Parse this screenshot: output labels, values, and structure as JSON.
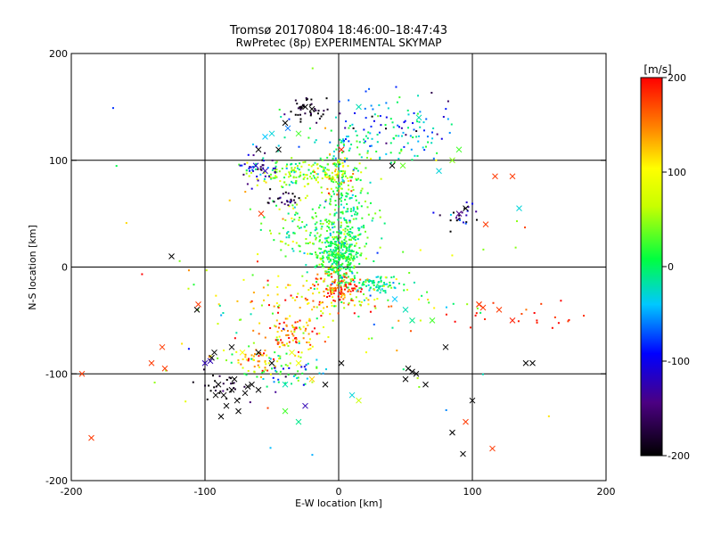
{
  "title_line1": "Tromsø 20170804 18:46:00–18:47:43",
  "title_line2": "RwPretec (8p) EXPERIMENTAL SKYMAP",
  "colorbar": {
    "unit_label": "[m/s]",
    "ticks": [
      200,
      100,
      0,
      -100,
      -200
    ],
    "range": [
      -200,
      200
    ],
    "colors": [
      "#000000",
      "#4b0082",
      "#0000ff",
      "#00c0ff",
      "#00ff00",
      "#ffff00",
      "#ff8c00",
      "#ff0000"
    ]
  },
  "chart_data": {
    "type": "scatter",
    "xlabel": "E-W location [km]",
    "ylabel": "N-S location [km]",
    "xlim": [
      -200,
      200
    ],
    "ylim": [
      -200,
      200
    ],
    "xticks": [
      -200,
      -100,
      0,
      100,
      200
    ],
    "yticks": [
      -200,
      -100,
      0,
      100,
      200
    ],
    "grid": true,
    "gridlines_x": [
      -100,
      0,
      100
    ],
    "gridlines_y": [
      -100,
      0,
      100
    ],
    "clusters": [
      {
        "x": 0,
        "y": 10,
        "sx": 8,
        "sy": 12,
        "n": 320,
        "v": 5,
        "vs": 25
      },
      {
        "x": 25,
        "y": -15,
        "sx": 10,
        "sy": 4,
        "n": 70,
        "v": -20,
        "vs": 20
      },
      {
        "x": 0,
        "y": -20,
        "sx": 10,
        "sy": 8,
        "n": 110,
        "v": 170,
        "vs": 40
      },
      {
        "x": -30,
        "y": 88,
        "sx": 20,
        "sy": 6,
        "n": 150,
        "v": 30,
        "vs": 40
      },
      {
        "x": 0,
        "y": 85,
        "sx": 6,
        "sy": 10,
        "n": 60,
        "v": 80,
        "vs": 50
      },
      {
        "x": 5,
        "y": 45,
        "sx": 10,
        "sy": 25,
        "n": 220,
        "v": 0,
        "vs": 30
      },
      {
        "x": -30,
        "y": 35,
        "sx": 12,
        "sy": 15,
        "n": 90,
        "v": 20,
        "vs": 40
      },
      {
        "x": -25,
        "y": 148,
        "sx": 8,
        "sy": 5,
        "n": 40,
        "v": -200,
        "vs": 20
      },
      {
        "x": 45,
        "y": 135,
        "sx": 25,
        "sy": 15,
        "n": 80,
        "v": -70,
        "vs": 50
      },
      {
        "x": 20,
        "y": 115,
        "sx": 30,
        "sy": 12,
        "n": 90,
        "v": -20,
        "vs": 40
      },
      {
        "x": -60,
        "y": 95,
        "sx": 8,
        "sy": 8,
        "n": 40,
        "v": -120,
        "vs": 40
      },
      {
        "x": -40,
        "y": 62,
        "sx": 8,
        "sy": 5,
        "n": 25,
        "v": -180,
        "vs": 30
      },
      {
        "x": 90,
        "y": 50,
        "sx": 8,
        "sy": 6,
        "n": 25,
        "v": -150,
        "vs": 40
      },
      {
        "x": -35,
        "y": -65,
        "sx": 10,
        "sy": 8,
        "n": 90,
        "v": 150,
        "vs": 60
      },
      {
        "x": -60,
        "y": -88,
        "sx": 12,
        "sy": 6,
        "n": 70,
        "v": 80,
        "vs": 80
      },
      {
        "x": -35,
        "y": -100,
        "sx": 15,
        "sy": 8,
        "n": 50,
        "v": -40,
        "vs": 60
      },
      {
        "x": -90,
        "y": -110,
        "sx": 10,
        "sy": 8,
        "n": 30,
        "v": -200,
        "vs": 20
      },
      {
        "x": -15,
        "y": -30,
        "sx": 25,
        "sy": 12,
        "n": 90,
        "v": 110,
        "vs": 60
      },
      {
        "x": 50,
        "y": -30,
        "sx": 25,
        "sy": 15,
        "n": 30,
        "v": 60,
        "vs": 80
      },
      {
        "x": 130,
        "y": -45,
        "sx": 25,
        "sy": 8,
        "n": 20,
        "v": 190,
        "vs": 10
      },
      {
        "x": -90,
        "y": -40,
        "sx": 20,
        "sy": 15,
        "n": 20,
        "v": 80,
        "vs": 80
      },
      {
        "x": 0,
        "y": 0,
        "sx": 90,
        "sy": 90,
        "n": 60,
        "v": 40,
        "vs": 100
      }
    ],
    "crosses": [
      [
        -192,
        -100,
        180
      ],
      [
        -185,
        -160,
        180
      ],
      [
        -132,
        -75,
        180
      ],
      [
        -125,
        10,
        -200
      ],
      [
        -105,
        -35,
        180
      ],
      [
        -106,
        -40,
        -200
      ],
      [
        -96,
        -88,
        -130
      ],
      [
        -93,
        -80,
        -200
      ],
      [
        -92,
        -120,
        -200
      ],
      [
        -90,
        -110,
        -200
      ],
      [
        -86,
        -120,
        -200
      ],
      [
        -84,
        -130,
        -200
      ],
      [
        -80,
        -115,
        -200
      ],
      [
        -78,
        -105,
        -200
      ],
      [
        -76,
        -125,
        -200
      ],
      [
        -70,
        -118,
        -200
      ],
      [
        -68,
        -112,
        -200
      ],
      [
        -65,
        -110,
        -200
      ],
      [
        -60,
        -115,
        -200
      ],
      [
        -75,
        -135,
        -200
      ],
      [
        -88,
        -140,
        -200
      ],
      [
        -58,
        50,
        180
      ],
      [
        -55,
        90,
        -130
      ],
      [
        -62,
        95,
        -120
      ],
      [
        -60,
        110,
        -200
      ],
      [
        -55,
        122,
        -50
      ],
      [
        -50,
        125,
        -40
      ],
      [
        -45,
        110,
        -200
      ],
      [
        -40,
        135,
        -200
      ],
      [
        -38,
        130,
        -70
      ],
      [
        -30,
        125,
        20
      ],
      [
        -25,
        150,
        -200
      ],
      [
        -20,
        148,
        -200
      ],
      [
        2,
        110,
        190
      ],
      [
        15,
        150,
        -30
      ],
      [
        40,
        95,
        -200
      ],
      [
        48,
        95,
        30
      ],
      [
        60,
        140,
        -30
      ],
      [
        75,
        90,
        -40
      ],
      [
        85,
        100,
        40
      ],
      [
        90,
        110,
        20
      ],
      [
        90,
        50,
        -150
      ],
      [
        95,
        55,
        -200
      ],
      [
        110,
        40,
        180
      ],
      [
        117,
        85,
        180
      ],
      [
        130,
        85,
        180
      ],
      [
        135,
        55,
        -40
      ],
      [
        120,
        -40,
        180
      ],
      [
        130,
        -50,
        190
      ],
      [
        105,
        -35,
        180
      ],
      [
        108,
        -38,
        180
      ],
      [
        105,
        -35,
        180
      ],
      [
        -60,
        -80,
        -200
      ],
      [
        -50,
        -90,
        -200
      ],
      [
        -30,
        -90,
        90
      ],
      [
        -40,
        -110,
        -30
      ],
      [
        -30,
        -145,
        -20
      ],
      [
        -40,
        -135,
        20
      ],
      [
        -25,
        -130,
        -130
      ],
      [
        -20,
        -105,
        120
      ],
      [
        -10,
        -110,
        -200
      ],
      [
        2,
        -90,
        -200
      ],
      [
        15,
        -125,
        60
      ],
      [
        10,
        -120,
        -40
      ],
      [
        50,
        -105,
        -200
      ],
      [
        55,
        -98,
        -200
      ],
      [
        58,
        -100,
        -200
      ],
      [
        52,
        -95,
        -200
      ],
      [
        65,
        -110,
        -200
      ],
      [
        80,
        -75,
        -200
      ],
      [
        85,
        -155,
        -200
      ],
      [
        93,
        -175,
        -200
      ],
      [
        95,
        -145,
        180
      ],
      [
        100,
        -125,
        -200
      ],
      [
        115,
        -170,
        180
      ],
      [
        145,
        -90,
        -200
      ],
      [
        140,
        -90,
        -200
      ],
      [
        -130,
        -95,
        180
      ],
      [
        -140,
        -90,
        180
      ],
      [
        -100,
        -90,
        -130
      ],
      [
        -95,
        -85,
        -200
      ],
      [
        -80,
        -75,
        -200
      ],
      [
        -72,
        -80,
        100
      ],
      [
        -35,
        -80,
        80
      ],
      [
        30,
        -20,
        -20
      ],
      [
        42,
        -30,
        -50
      ],
      [
        50,
        -40,
        -30
      ],
      [
        55,
        -50,
        -20
      ],
      [
        70,
        -50,
        20
      ]
    ]
  }
}
